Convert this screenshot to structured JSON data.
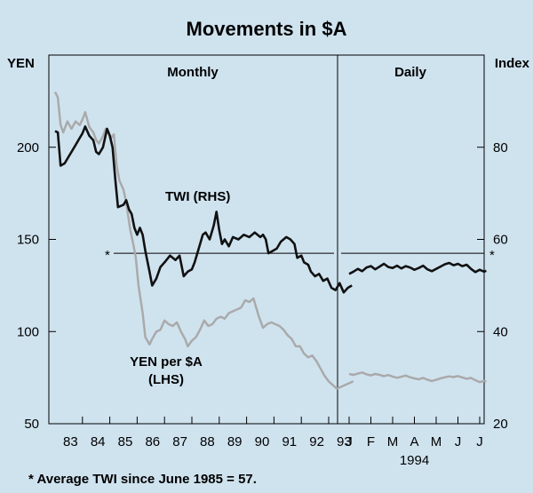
{
  "chart_data": {
    "type": "line",
    "title": "Movements in $A",
    "left_axis": {
      "label": "YEN",
      "ylim": [
        50,
        250
      ],
      "ticks": [
        50,
        100,
        150,
        200
      ]
    },
    "right_axis": {
      "label": "Index",
      "ylim": [
        20,
        100
      ],
      "ticks": [
        20,
        40,
        60,
        80
      ]
    },
    "panels": [
      {
        "name": "Monthly",
        "x_start": 1983.0,
        "x_end": 1993.9,
        "tick_labels": [
          "83",
          "84",
          "85",
          "86",
          "87",
          "88",
          "89",
          "90",
          "91",
          "92",
          "93"
        ]
      },
      {
        "name": "Daily",
        "months": [
          "J",
          "F",
          "M",
          "A",
          "M",
          "J",
          "J"
        ],
        "year_label": "1994"
      }
    ],
    "reference_line": {
      "value_index": 57,
      "marker": "*"
    },
    "footnote": "* Average TWI since June 1985 = 57.",
    "series": [
      {
        "name": "TWI (RHS)",
        "label": "TWI  (RHS)",
        "axis": "right",
        "color": "#111111",
        "monthly": [
          [
            1983.0,
            83.5
          ],
          [
            1983.1,
            83.2
          ],
          [
            1983.2,
            76
          ],
          [
            1983.35,
            76.5
          ],
          [
            1983.5,
            78
          ],
          [
            1983.7,
            80
          ],
          [
            1983.9,
            82
          ],
          [
            1984.0,
            83
          ],
          [
            1984.1,
            84.5
          ],
          [
            1984.25,
            82.5
          ],
          [
            1984.4,
            81.5
          ],
          [
            1984.5,
            79
          ],
          [
            1984.6,
            78.5
          ],
          [
            1984.75,
            80
          ],
          [
            1984.9,
            84
          ],
          [
            1985.0,
            82.5
          ],
          [
            1985.1,
            80
          ],
          [
            1985.2,
            73
          ],
          [
            1985.3,
            67
          ],
          [
            1985.5,
            67.5
          ],
          [
            1985.6,
            68.5
          ],
          [
            1985.7,
            66.5
          ],
          [
            1985.8,
            65.5
          ],
          [
            1985.9,
            62.5
          ],
          [
            1986.0,
            61
          ],
          [
            1986.1,
            62.5
          ],
          [
            1986.2,
            61
          ],
          [
            1986.3,
            57.5
          ],
          [
            1986.45,
            53
          ],
          [
            1986.55,
            50
          ],
          [
            1986.7,
            51.5
          ],
          [
            1986.85,
            54
          ],
          [
            1987.0,
            55
          ],
          [
            1987.2,
            56.5
          ],
          [
            1987.4,
            55.5
          ],
          [
            1987.55,
            56.5
          ],
          [
            1987.7,
            52
          ],
          [
            1987.85,
            53
          ],
          [
            1988.0,
            53.5
          ],
          [
            1988.1,
            55
          ],
          [
            1988.25,
            58
          ],
          [
            1988.4,
            61
          ],
          [
            1988.5,
            61.5
          ],
          [
            1988.65,
            60
          ],
          [
            1988.8,
            63
          ],
          [
            1988.9,
            66
          ],
          [
            1989.0,
            62
          ],
          [
            1989.1,
            59
          ],
          [
            1989.2,
            60
          ],
          [
            1989.35,
            58.5
          ],
          [
            1989.5,
            60.5
          ],
          [
            1989.7,
            60
          ],
          [
            1989.9,
            61
          ],
          [
            1990.1,
            60.5
          ],
          [
            1990.3,
            61.5
          ],
          [
            1990.5,
            60.5
          ],
          [
            1990.6,
            61
          ],
          [
            1990.7,
            60
          ],
          [
            1990.8,
            57
          ],
          [
            1990.95,
            57.5
          ],
          [
            1991.1,
            58
          ],
          [
            1991.25,
            59.5
          ],
          [
            1991.45,
            60.5
          ],
          [
            1991.6,
            60
          ],
          [
            1991.75,
            59
          ],
          [
            1991.85,
            56
          ],
          [
            1992.0,
            56.5
          ],
          [
            1992.1,
            55
          ],
          [
            1992.25,
            54.5
          ],
          [
            1992.35,
            53
          ],
          [
            1992.5,
            52
          ],
          [
            1992.65,
            52.5
          ],
          [
            1992.8,
            51
          ],
          [
            1992.95,
            51.5
          ],
          [
            1993.1,
            49.5
          ],
          [
            1993.25,
            49
          ],
          [
            1993.4,
            50.5
          ],
          [
            1993.55,
            48.5
          ],
          [
            1993.7,
            49.5
          ],
          [
            1993.85,
            50
          ]
        ],
        "daily": [
          [
            0.0,
            52.5
          ],
          [
            0.2,
            53.0
          ],
          [
            0.4,
            53.6
          ],
          [
            0.6,
            53.1
          ],
          [
            0.8,
            53.9
          ],
          [
            1.0,
            54.2
          ],
          [
            1.2,
            53.5
          ],
          [
            1.4,
            54.1
          ],
          [
            1.6,
            54.7
          ],
          [
            1.8,
            54.0
          ],
          [
            2.0,
            53.8
          ],
          [
            2.2,
            54.3
          ],
          [
            2.4,
            53.7
          ],
          [
            2.6,
            54.2
          ],
          [
            2.8,
            53.9
          ],
          [
            3.0,
            53.4
          ],
          [
            3.2,
            53.8
          ],
          [
            3.4,
            54.3
          ],
          [
            3.6,
            53.5
          ],
          [
            3.8,
            53.1
          ],
          [
            4.0,
            53.6
          ],
          [
            4.2,
            54.1
          ],
          [
            4.4,
            54.6
          ],
          [
            4.6,
            54.9
          ],
          [
            4.8,
            54.4
          ],
          [
            5.0,
            54.7
          ],
          [
            5.2,
            54.2
          ],
          [
            5.4,
            54.5
          ],
          [
            5.6,
            53.6
          ],
          [
            5.8,
            52.9
          ],
          [
            6.0,
            53.4
          ],
          [
            6.2,
            53.0
          ],
          [
            6.3,
            53.2
          ]
        ]
      },
      {
        "name": "YEN per $A (LHS)",
        "label": [
          "YEN per $A",
          "(LHS)"
        ],
        "axis": "left",
        "color": "#aaaaaa",
        "monthly": [
          [
            1983.0,
            230
          ],
          [
            1983.1,
            227
          ],
          [
            1983.2,
            212
          ],
          [
            1983.3,
            208
          ],
          [
            1983.45,
            214
          ],
          [
            1983.6,
            210
          ],
          [
            1983.75,
            214
          ],
          [
            1983.9,
            212
          ],
          [
            1984.0,
            215
          ],
          [
            1984.1,
            219
          ],
          [
            1984.25,
            211
          ],
          [
            1984.4,
            208
          ],
          [
            1984.5,
            204
          ],
          [
            1984.6,
            202
          ],
          [
            1984.75,
            206
          ],
          [
            1984.85,
            210
          ],
          [
            1984.95,
            208
          ],
          [
            1985.05,
            205
          ],
          [
            1985.15,
            207
          ],
          [
            1985.25,
            190
          ],
          [
            1985.35,
            182
          ],
          [
            1985.5,
            177
          ],
          [
            1985.6,
            170
          ],
          [
            1985.75,
            155
          ],
          [
            1985.85,
            148
          ],
          [
            1985.95,
            140
          ],
          [
            1986.05,
            125
          ],
          [
            1986.2,
            110
          ],
          [
            1986.3,
            97
          ],
          [
            1986.45,
            93
          ],
          [
            1986.55,
            96
          ],
          [
            1986.7,
            100
          ],
          [
            1986.85,
            101
          ],
          [
            1987.0,
            106
          ],
          [
            1987.15,
            104
          ],
          [
            1987.3,
            103
          ],
          [
            1987.45,
            105
          ],
          [
            1987.6,
            100
          ],
          [
            1987.75,
            96
          ],
          [
            1987.85,
            92
          ],
          [
            1988.0,
            95
          ],
          [
            1988.15,
            97
          ],
          [
            1988.3,
            101
          ],
          [
            1988.45,
            106
          ],
          [
            1988.6,
            103
          ],
          [
            1988.75,
            104
          ],
          [
            1988.9,
            107
          ],
          [
            1989.05,
            108
          ],
          [
            1989.2,
            107
          ],
          [
            1989.35,
            110
          ],
          [
            1989.5,
            111
          ],
          [
            1989.65,
            112
          ],
          [
            1989.8,
            113
          ],
          [
            1989.95,
            117
          ],
          [
            1990.1,
            116
          ],
          [
            1990.25,
            118
          ],
          [
            1990.45,
            108
          ],
          [
            1990.6,
            102
          ],
          [
            1990.75,
            104
          ],
          [
            1990.9,
            105
          ],
          [
            1991.05,
            104
          ],
          [
            1991.2,
            103
          ],
          [
            1991.35,
            101
          ],
          [
            1991.5,
            98
          ],
          [
            1991.65,
            96
          ],
          [
            1991.8,
            92
          ],
          [
            1991.95,
            92
          ],
          [
            1992.1,
            88
          ],
          [
            1992.25,
            86
          ],
          [
            1992.4,
            87
          ],
          [
            1992.55,
            84
          ],
          [
            1992.7,
            80
          ],
          [
            1992.85,
            76
          ],
          [
            1993.0,
            73
          ],
          [
            1993.15,
            71
          ],
          [
            1993.3,
            69
          ],
          [
            1993.45,
            70
          ],
          [
            1993.6,
            71
          ],
          [
            1993.75,
            72
          ],
          [
            1993.9,
            73
          ]
        ],
        "daily": [
          [
            0.0,
            77.0
          ],
          [
            0.2,
            76.5
          ],
          [
            0.4,
            77.2
          ],
          [
            0.6,
            77.8
          ],
          [
            0.8,
            76.8
          ],
          [
            1.0,
            76.2
          ],
          [
            1.2,
            77.0
          ],
          [
            1.4,
            76.5
          ],
          [
            1.6,
            75.8
          ],
          [
            1.8,
            76.4
          ],
          [
            2.0,
            75.6
          ],
          [
            2.2,
            74.9
          ],
          [
            2.4,
            75.5
          ],
          [
            2.6,
            76.1
          ],
          [
            2.8,
            75.2
          ],
          [
            3.0,
            74.6
          ],
          [
            3.2,
            74.1
          ],
          [
            3.4,
            74.8
          ],
          [
            3.6,
            73.9
          ],
          [
            3.8,
            73.2
          ],
          [
            4.0,
            73.8
          ],
          [
            4.2,
            74.6
          ],
          [
            4.4,
            75.2
          ],
          [
            4.6,
            75.7
          ],
          [
            4.8,
            75.3
          ],
          [
            5.0,
            75.9
          ],
          [
            5.2,
            75.1
          ],
          [
            5.4,
            74.4
          ],
          [
            5.6,
            74.8
          ],
          [
            5.8,
            73.6
          ],
          [
            6.0,
            72.6
          ],
          [
            6.2,
            73.2
          ],
          [
            6.3,
            72.9
          ]
        ]
      }
    ]
  }
}
